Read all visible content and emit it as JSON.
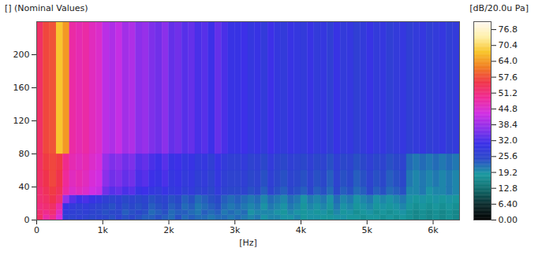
{
  "chart_data": {
    "type": "heatmap",
    "title": "[] (Nominal Values)",
    "x_label": "[Hz]",
    "xlim": [
      0,
      6400
    ],
    "xticks": [
      0,
      {
        "value": 1000,
        "label": "1k"
      },
      {
        "value": 2000,
        "label": "2k"
      },
      {
        "value": 3000,
        "label": "3k"
      },
      {
        "value": 4000,
        "label": "4k"
      },
      {
        "value": 5000,
        "label": "5k"
      },
      {
        "value": 6000,
        "label": "6k"
      }
    ],
    "ylim": [
      0,
      240
    ],
    "yticks": [
      0,
      40,
      80,
      120,
      160,
      200
    ],
    "x_edges": [
      0,
      100,
      200,
      300,
      400,
      500,
      600,
      700,
      800,
      900,
      1000,
      1100,
      1200,
      1300,
      1400,
      1500,
      1600,
      1700,
      1800,
      1900,
      2000,
      2100,
      2200,
      2300,
      2400,
      2500,
      2600,
      2700,
      2800,
      2900,
      3000,
      3100,
      3200,
      3300,
      3400,
      3500,
      3600,
      3700,
      3800,
      3900,
      4000,
      4100,
      4200,
      4300,
      4400,
      4500,
      4600,
      4700,
      4800,
      4900,
      5000,
      5100,
      5200,
      5300,
      5400,
      5500,
      5600,
      5700,
      5800,
      5900,
      6000,
      6100,
      6200,
      6300,
      6400
    ],
    "y_edges": [
      0,
      6,
      12,
      20,
      30,
      40,
      60,
      80,
      240
    ],
    "z": [
      [
        53,
        48,
        50,
        44,
        27,
        26,
        27,
        26,
        25,
        26,
        25,
        24,
        26,
        24,
        25,
        24,
        23,
        23,
        24,
        23,
        22,
        24,
        22,
        23,
        22,
        22,
        21,
        22,
        22,
        21,
        22,
        21,
        20,
        21,
        19,
        20,
        20,
        19,
        19,
        20,
        18,
        19,
        19,
        18,
        18,
        19,
        19,
        18,
        18,
        17,
        18,
        18,
        17,
        18,
        17,
        18,
        17,
        16,
        17,
        16,
        17,
        16,
        17,
        16
      ],
      [
        52,
        50,
        52,
        46,
        28,
        27,
        26,
        27,
        26,
        25,
        24,
        25,
        25,
        23,
        24,
        25,
        24,
        22,
        23,
        24,
        22,
        23,
        23,
        22,
        21,
        23,
        22,
        23,
        21,
        22,
        21,
        22,
        19,
        20,
        20,
        20,
        19,
        18,
        20,
        19,
        18,
        19,
        18,
        19,
        17,
        20,
        18,
        19,
        17,
        18,
        19,
        17,
        18,
        17,
        18,
        19,
        17,
        16,
        17,
        16,
        17,
        16,
        17,
        16
      ],
      [
        51,
        52,
        53,
        48,
        30,
        28,
        27,
        28,
        27,
        26,
        25,
        24,
        26,
        24,
        25,
        24,
        25,
        23,
        24,
        25,
        23,
        24,
        22,
        23,
        21,
        22,
        23,
        24,
        22,
        21,
        22,
        21,
        20,
        21,
        19,
        21,
        20,
        19,
        21,
        20,
        18,
        20,
        19,
        20,
        18,
        21,
        19,
        20,
        18,
        19,
        20,
        18,
        19,
        18,
        19,
        20,
        18,
        17,
        18,
        17,
        18,
        17,
        18,
        17
      ],
      [
        52,
        53,
        55,
        52,
        38,
        33,
        31,
        32,
        30,
        29,
        27,
        26,
        27,
        25,
        26,
        25,
        26,
        24,
        25,
        26,
        24,
        25,
        23,
        24,
        22,
        23,
        24,
        25,
        23,
        22,
        23,
        22,
        21,
        22,
        20,
        22,
        21,
        20,
        22,
        21,
        19,
        21,
        20,
        21,
        19,
        22,
        20,
        21,
        19,
        20,
        21,
        19,
        20,
        19,
        20,
        21,
        19,
        18,
        19,
        18,
        19,
        18,
        19,
        18
      ],
      [
        52,
        54,
        56,
        54,
        48,
        45,
        46,
        45,
        43,
        42,
        35,
        33,
        34,
        32,
        33,
        30,
        31,
        29,
        28,
        30,
        28,
        29,
        27,
        28,
        26,
        27,
        25,
        28,
        26,
        25,
        25,
        26,
        24,
        25,
        23,
        26,
        24,
        23,
        25,
        24,
        23,
        25,
        23,
        24,
        22,
        25,
        23,
        24,
        22,
        23,
        25,
        23,
        24,
        22,
        23,
        24,
        20,
        20,
        21,
        19,
        20,
        20,
        21,
        20
      ],
      [
        53,
        55,
        57,
        55,
        49,
        46,
        47,
        46,
        44,
        43,
        37,
        35,
        36,
        34,
        35,
        32,
        33,
        31,
        30,
        32,
        29,
        30,
        28,
        29,
        27,
        28,
        26,
        29,
        27,
        26,
        26,
        27,
        25,
        26,
        24,
        27,
        25,
        24,
        26,
        25,
        24,
        26,
        24,
        25,
        23,
        26,
        24,
        25,
        23,
        24,
        26,
        24,
        25,
        23,
        24,
        25,
        21,
        20,
        21,
        20,
        21,
        20,
        21,
        20
      ],
      [
        53,
        56,
        57,
        56,
        50,
        47,
        46,
        47,
        45,
        44,
        38,
        36,
        37,
        35,
        36,
        33,
        34,
        32,
        31,
        33,
        30,
        31,
        29,
        30,
        28,
        29,
        27,
        30,
        28,
        27,
        27,
        28,
        26,
        27,
        25,
        28,
        26,
        25,
        27,
        26,
        25,
        27,
        25,
        26,
        24,
        27,
        25,
        26,
        24,
        25,
        27,
        25,
        26,
        24,
        25,
        26,
        22,
        21,
        22,
        21,
        22,
        21,
        22,
        21
      ],
      [
        53,
        57,
        58,
        68,
        64,
        48,
        47,
        48,
        46,
        45,
        41,
        40,
        42,
        39,
        40,
        37,
        38,
        36,
        35,
        37,
        34,
        35,
        33,
        34,
        32,
        33,
        31,
        34,
        32,
        30,
        30,
        31,
        29,
        30,
        28,
        31,
        29,
        28,
        30,
        29,
        28,
        30,
        28,
        29,
        27,
        30,
        28,
        29,
        27,
        28,
        30,
        28,
        29,
        27,
        28,
        29,
        27,
        28,
        29,
        27,
        28,
        29,
        27,
        28
      ]
    ],
    "colorbar": {
      "label": "[dB/20.0u Pa]",
      "range": [
        0,
        80
      ],
      "ticks": [
        {
          "value": 0,
          "label": "0.00"
        },
        {
          "value": 6.4,
          "label": "6.40"
        },
        12.8,
        19.2,
        25.6,
        {
          "value": 32,
          "label": "32.0"
        },
        38.4,
        44.8,
        51.2,
        57.6,
        {
          "value": 64,
          "label": "64.0"
        },
        70.4,
        76.8
      ]
    }
  }
}
